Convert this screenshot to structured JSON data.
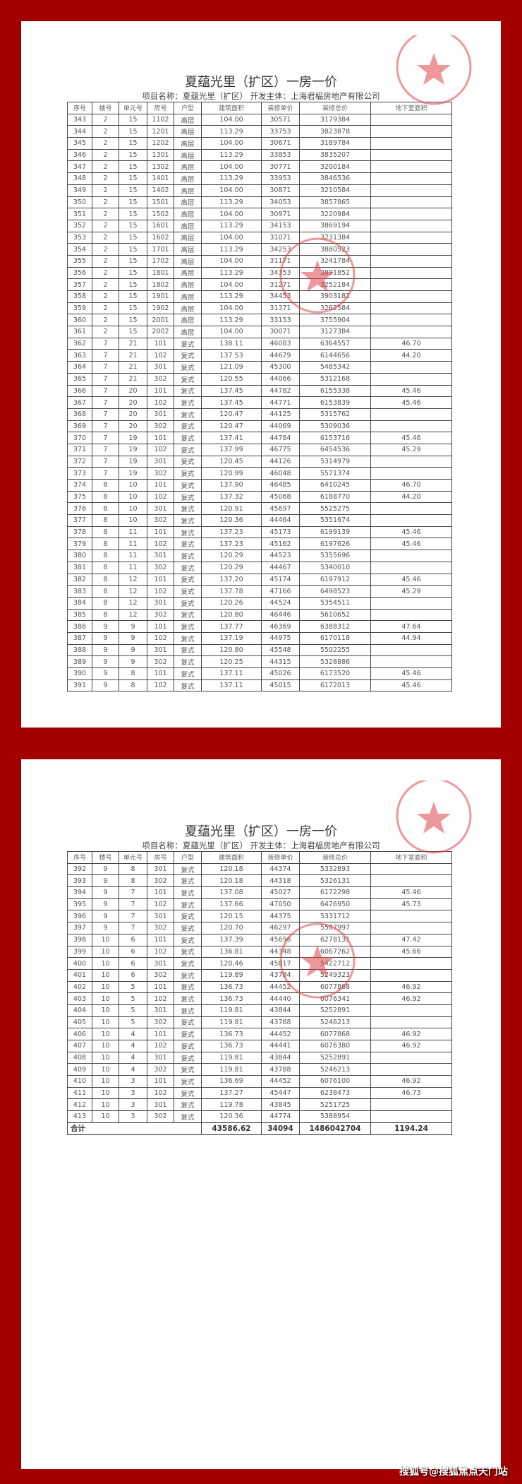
{
  "document": {
    "title": "夏蕴光里（扩区）一房一价",
    "subtitle": "项目名称：夏蕴光里（扩区）   开发主体：上海君榀房地产有限公司",
    "columns": [
      "序号",
      "楼号",
      "单元号",
      "房号",
      "户型",
      "建筑面积",
      "装修单价",
      "装修总价",
      "地下室面积"
    ],
    "stamp_color": "#e0474c",
    "border_color": "#a30000"
  },
  "page1": {
    "rows": [
      [
        "343",
        "2",
        "15",
        "1102",
        "高层",
        "104.00",
        "30571",
        "3179384",
        ""
      ],
      [
        "344",
        "2",
        "15",
        "1201",
        "高层",
        "113.29",
        "33753",
        "3823878",
        ""
      ],
      [
        "345",
        "2",
        "15",
        "1202",
        "高层",
        "104.00",
        "30671",
        "3189784",
        ""
      ],
      [
        "346",
        "2",
        "15",
        "1301",
        "高层",
        "113.29",
        "33853",
        "3835207",
        ""
      ],
      [
        "347",
        "2",
        "15",
        "1302",
        "高层",
        "104.00",
        "30771",
        "3200184",
        ""
      ],
      [
        "348",
        "2",
        "15",
        "1401",
        "高层",
        "113.29",
        "33953",
        "3846536",
        ""
      ],
      [
        "349",
        "2",
        "15",
        "1402",
        "高层",
        "104.00",
        "30871",
        "3210584",
        ""
      ],
      [
        "350",
        "2",
        "15",
        "1501",
        "高层",
        "113.29",
        "34053",
        "3857865",
        ""
      ],
      [
        "351",
        "2",
        "15",
        "1502",
        "高层",
        "104.00",
        "30971",
        "3220984",
        ""
      ],
      [
        "352",
        "2",
        "15",
        "1601",
        "高层",
        "113.29",
        "34153",
        "3869194",
        ""
      ],
      [
        "353",
        "2",
        "15",
        "1602",
        "高层",
        "104.00",
        "31071",
        "3231384",
        ""
      ],
      [
        "354",
        "2",
        "15",
        "1701",
        "高层",
        "113.29",
        "34253",
        "3880523",
        ""
      ],
      [
        "355",
        "2",
        "15",
        "1702",
        "高层",
        "104.00",
        "31171",
        "3241784",
        ""
      ],
      [
        "356",
        "2",
        "15",
        "1801",
        "高层",
        "113.29",
        "34353",
        "3891852",
        ""
      ],
      [
        "357",
        "2",
        "15",
        "1802",
        "高层",
        "104.00",
        "31271",
        "3252184",
        ""
      ],
      [
        "358",
        "2",
        "15",
        "1901",
        "高层",
        "113.29",
        "34453",
        "3903181",
        ""
      ],
      [
        "359",
        "2",
        "15",
        "1902",
        "高层",
        "104.00",
        "31371",
        "3262584",
        ""
      ],
      [
        "360",
        "2",
        "15",
        "2001",
        "高层",
        "113.29",
        "33153",
        "3755904",
        ""
      ],
      [
        "361",
        "2",
        "15",
        "2002",
        "高层",
        "104.00",
        "30071",
        "3127384",
        ""
      ],
      [
        "362",
        "7",
        "21",
        "101",
        "复式",
        "138.11",
        "46083",
        "6364557",
        "46.70"
      ],
      [
        "363",
        "7",
        "21",
        "102",
        "复式",
        "137.53",
        "44679",
        "6144656",
        "44.20"
      ],
      [
        "364",
        "7",
        "21",
        "301",
        "复式",
        "121.09",
        "45300",
        "5485342",
        ""
      ],
      [
        "365",
        "7",
        "21",
        "302",
        "复式",
        "120.55",
        "44066",
        "5312168",
        ""
      ],
      [
        "366",
        "7",
        "20",
        "101",
        "复式",
        "137.45",
        "44782",
        "6155338",
        "45.46"
      ],
      [
        "367",
        "7",
        "20",
        "102",
        "复式",
        "137.45",
        "44771",
        "6153839",
        "45.46"
      ],
      [
        "368",
        "7",
        "20",
        "301",
        "复式",
        "120.47",
        "44125",
        "5315762",
        ""
      ],
      [
        "369",
        "7",
        "20",
        "302",
        "复式",
        "120.47",
        "44069",
        "5309036",
        ""
      ],
      [
        "370",
        "7",
        "19",
        "101",
        "复式",
        "137.41",
        "44784",
        "6153716",
        "45.46"
      ],
      [
        "371",
        "7",
        "19",
        "102",
        "复式",
        "137.99",
        "46775",
        "6454536",
        "45.29"
      ],
      [
        "372",
        "7",
        "19",
        "301",
        "复式",
        "120.45",
        "44126",
        "5314979",
        ""
      ],
      [
        "373",
        "7",
        "19",
        "302",
        "复式",
        "120.99",
        "46048",
        "5571374",
        ""
      ],
      [
        "374",
        "8",
        "10",
        "101",
        "复式",
        "137.90",
        "46485",
        "6410245",
        "46.70"
      ],
      [
        "375",
        "8",
        "10",
        "102",
        "复式",
        "137.32",
        "45068",
        "6188770",
        "44.20"
      ],
      [
        "376",
        "8",
        "10",
        "301",
        "复式",
        "120.91",
        "45697",
        "5525275",
        ""
      ],
      [
        "377",
        "8",
        "10",
        "302",
        "复式",
        "120.36",
        "44464",
        "5351674",
        ""
      ],
      [
        "378",
        "8",
        "11",
        "101",
        "复式",
        "137.23",
        "45173",
        "6199139",
        "45.46"
      ],
      [
        "379",
        "8",
        "11",
        "102",
        "复式",
        "137.23",
        "45162",
        "6197626",
        "45.46"
      ],
      [
        "380",
        "8",
        "11",
        "301",
        "复式",
        "120.29",
        "44523",
        "5355696",
        ""
      ],
      [
        "381",
        "8",
        "11",
        "302",
        "复式",
        "120.29",
        "44467",
        "5340010",
        ""
      ],
      [
        "382",
        "8",
        "12",
        "101",
        "复式",
        "137.20",
        "45174",
        "6197912",
        "45.46"
      ],
      [
        "383",
        "8",
        "12",
        "102",
        "复式",
        "137.78",
        "47166",
        "6498523",
        "45.29"
      ],
      [
        "384",
        "8",
        "12",
        "301",
        "复式",
        "120.26",
        "44524",
        "5354511",
        ""
      ],
      [
        "385",
        "8",
        "12",
        "302",
        "复式",
        "120.80",
        "46446",
        "5610652",
        ""
      ],
      [
        "386",
        "9",
        "9",
        "101",
        "复式",
        "137.77",
        "46369",
        "6388312",
        "47.64"
      ],
      [
        "387",
        "9",
        "9",
        "102",
        "复式",
        "137.19",
        "44975",
        "6170118",
        "44.94"
      ],
      [
        "388",
        "9",
        "9",
        "301",
        "复式",
        "120.80",
        "45548",
        "5502255",
        ""
      ],
      [
        "389",
        "9",
        "9",
        "302",
        "复式",
        "120.25",
        "44315",
        "5328886",
        ""
      ],
      [
        "390",
        "9",
        "8",
        "101",
        "复式",
        "137.11",
        "45026",
        "6173520",
        "45.46"
      ],
      [
        "391",
        "9",
        "8",
        "102",
        "复式",
        "137.11",
        "45015",
        "6172013",
        "45.46"
      ]
    ]
  },
  "page2": {
    "rows": [
      [
        "392",
        "9",
        "8",
        "301",
        "复式",
        "120.18",
        "44374",
        "5332893",
        ""
      ],
      [
        "393",
        "9",
        "8",
        "302",
        "复式",
        "120.18",
        "44318",
        "5326131",
        ""
      ],
      [
        "394",
        "9",
        "7",
        "101",
        "复式",
        "137.08",
        "45027",
        "6172298",
        "45.46"
      ],
      [
        "395",
        "9",
        "7",
        "102",
        "复式",
        "137.66",
        "47050",
        "6476950",
        "45.73"
      ],
      [
        "396",
        "9",
        "7",
        "301",
        "复式",
        "120.15",
        "44375",
        "5331712",
        ""
      ],
      [
        "397",
        "9",
        "7",
        "302",
        "复式",
        "120.70",
        "46297",
        "5587997",
        ""
      ],
      [
        "398",
        "10",
        "6",
        "101",
        "复式",
        "137.39",
        "45696",
        "6278131",
        "47.42"
      ],
      [
        "399",
        "10",
        "6",
        "102",
        "复式",
        "136.81",
        "44348",
        "6067262",
        "45.66"
      ],
      [
        "400",
        "10",
        "6",
        "301",
        "复式",
        "120.46",
        "45017",
        "5422712",
        ""
      ],
      [
        "401",
        "10",
        "6",
        "302",
        "复式",
        "119.89",
        "43784",
        "5249323",
        ""
      ],
      [
        "402",
        "10",
        "5",
        "101",
        "复式",
        "136.73",
        "44452",
        "6077868",
        "46.92"
      ],
      [
        "403",
        "10",
        "5",
        "102",
        "复式",
        "136.73",
        "44440",
        "6076341",
        "46.92"
      ],
      [
        "404",
        "10",
        "5",
        "301",
        "复式",
        "119.81",
        "43844",
        "5252891",
        ""
      ],
      [
        "405",
        "10",
        "5",
        "302",
        "复式",
        "119.81",
        "43788",
        "5246213",
        ""
      ],
      [
        "406",
        "10",
        "4",
        "101",
        "复式",
        "136.73",
        "44452",
        "6077868",
        "46.92"
      ],
      [
        "407",
        "10",
        "4",
        "102",
        "复式",
        "136.73",
        "44441",
        "6076380",
        "46.92"
      ],
      [
        "408",
        "10",
        "4",
        "301",
        "复式",
        "119.81",
        "43844",
        "5252891",
        ""
      ],
      [
        "409",
        "10",
        "4",
        "302",
        "复式",
        "119.81",
        "43788",
        "5246213",
        ""
      ],
      [
        "410",
        "10",
        "3",
        "101",
        "复式",
        "136.69",
        "44452",
        "6076100",
        "46.92"
      ],
      [
        "411",
        "10",
        "3",
        "102",
        "复式",
        "137.27",
        "45447",
        "6238473",
        "46.73"
      ],
      [
        "412",
        "10",
        "3",
        "301",
        "复式",
        "119.78",
        "43845",
        "5251725",
        ""
      ],
      [
        "413",
        "10",
        "3",
        "302",
        "复式",
        "120.36",
        "44774",
        "5388954",
        ""
      ]
    ],
    "total": {
      "label": "合计",
      "area": "43586.62",
      "unit_price": "34094",
      "total_price": "1486042704",
      "basement": "1194.24"
    }
  },
  "watermark": "搜狐号@搜狐焦点天门站"
}
